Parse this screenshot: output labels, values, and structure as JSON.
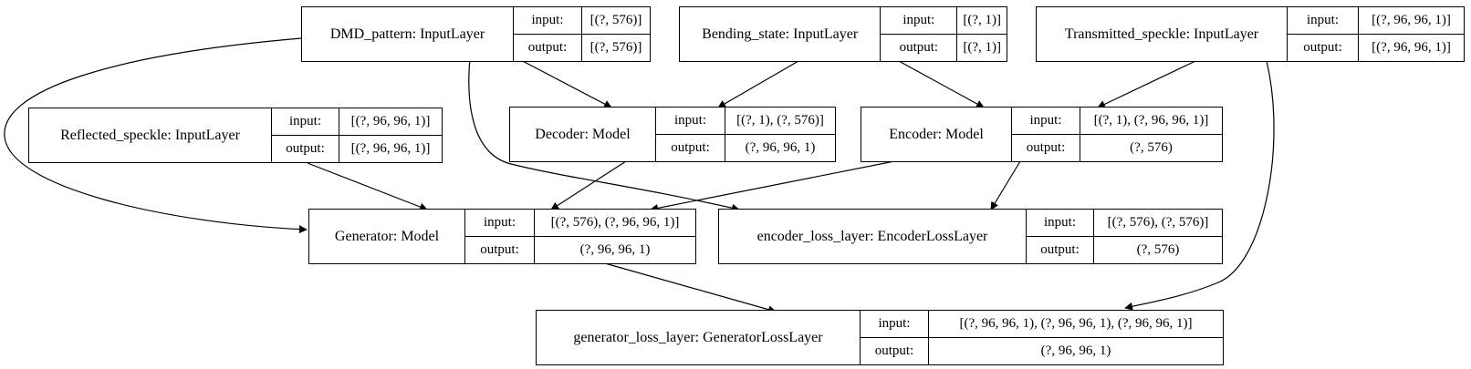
{
  "nodes": [
    {
      "id": "dmd_pattern",
      "name": "DMD_pattern: InputLayer",
      "input": "[(?, 576)]",
      "output": "[(?, 576)]"
    },
    {
      "id": "bending_state",
      "name": "Bending_state: InputLayer",
      "input": "[(?, 1)]",
      "output": "[(?, 1)]"
    },
    {
      "id": "transmitted_speckle",
      "name": "Transmitted_speckle: InputLayer",
      "input": "[(?, 96, 96, 1)]",
      "output": "[(?, 96, 96, 1)]"
    },
    {
      "id": "reflected_speckle",
      "name": "Reflected_speckle: InputLayer",
      "input": "[(?, 96, 96, 1)]",
      "output": "[(?, 96, 96, 1)]"
    },
    {
      "id": "decoder",
      "name": "Decoder: Model",
      "input": "[(?, 1), (?, 576)]",
      "output": "(?, 96, 96, 1)"
    },
    {
      "id": "encoder",
      "name": "Encoder: Model",
      "input": "[(?, 1), (?, 96, 96, 1)]",
      "output": "(?, 576)"
    },
    {
      "id": "generator",
      "name": "Generator: Model",
      "input": "[(?, 576), (?, 96, 96, 1)]",
      "output": "(?, 96, 96, 1)"
    },
    {
      "id": "encoder_loss_layer",
      "name": "encoder_loss_layer: EncoderLossLayer",
      "input": "[(?, 576), (?, 576)]",
      "output": "(?, 576)"
    },
    {
      "id": "generator_loss_layer",
      "name": "generator_loss_layer: GeneratorLossLayer",
      "input": "[(?, 96, 96, 1), (?, 96, 96, 1), (?, 96, 96, 1)]",
      "output": "(?, 96, 96, 1)"
    }
  ],
  "port_labels": {
    "input": "input:",
    "output": "output:"
  },
  "edges": [
    {
      "from": "dmd_pattern",
      "to": "decoder"
    },
    {
      "from": "dmd_pattern",
      "to": "generator"
    },
    {
      "from": "dmd_pattern",
      "to": "encoder_loss_layer"
    },
    {
      "from": "bending_state",
      "to": "decoder"
    },
    {
      "from": "bending_state",
      "to": "encoder"
    },
    {
      "from": "transmitted_speckle",
      "to": "encoder"
    },
    {
      "from": "transmitted_speckle",
      "to": "generator_loss_layer"
    },
    {
      "from": "reflected_speckle",
      "to": "generator"
    },
    {
      "from": "decoder",
      "to": "generator"
    },
    {
      "from": "encoder",
      "to": "generator"
    },
    {
      "from": "encoder",
      "to": "encoder_loss_layer"
    },
    {
      "from": "generator",
      "to": "generator_loss_layer"
    }
  ]
}
